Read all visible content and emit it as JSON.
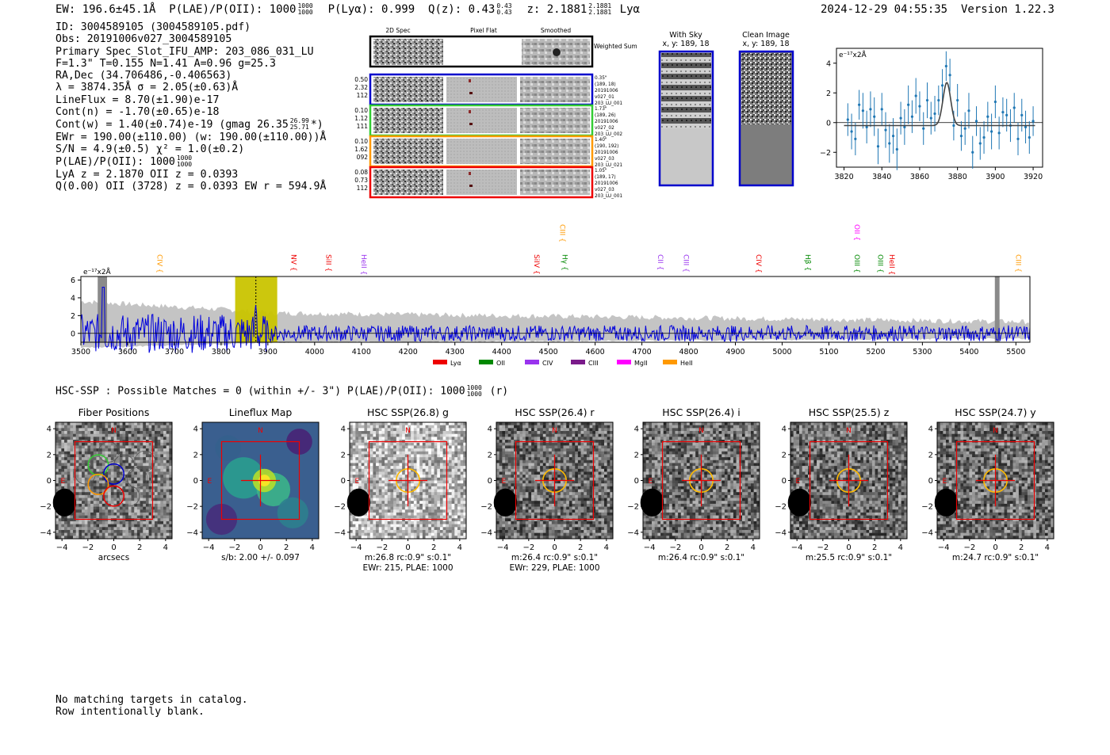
{
  "header": {
    "ew": "EW: 196.6±45.1Å",
    "plae_label": "P(LAE)/P(OII): 1000",
    "plae_hi": "1000",
    "plae_lo": "1000",
    "plya": "P(Lyα): 0.999",
    "qz_label": "Q(z): 0.43",
    "qz_hi": "0.43",
    "qz_lo": "0.43",
    "z_label": "z: 2.1881",
    "z_hi": "2.1881",
    "z_lo": "2.1881",
    "z_line": "Lyα",
    "datetime": "2024-12-29 04:55:35",
    "version": "Version 1.22.3"
  },
  "info": {
    "id": "ID: 3004589105 (3004589105.pdf)",
    "obs": "Obs: 20191006v027_3004589105",
    "primary": "Primary Spec_Slot_IFU_AMP: 203_086_031_LU",
    "fit": "F=1.3\"  T=0.155  N=1.41  A=0.96  g=25.3",
    "radec": "RA,Dec (34.706486,-0.406563)",
    "lambda": "λ = 3874.35Å  σ = 2.05(±0.63)Å",
    "lineflux": "LineFlux = 8.70(±1.90)e-17",
    "contn": "Cont(n) = -1.70(±0.65)e-18",
    "contw": "Cont(w) = 1.40(±0.74)e-19 (gmag 26.35",
    "gmag_hi": "26.99",
    "gmag_lo": "25.71",
    "contw_end": "*)",
    "ewr": "EWr = 190.00(±110.00) (w: 190.00(±110.00))Å",
    "sn": "S/N = 4.9(±0.5)  χ² = 1.0(±0.2)",
    "plae": "P(LAE)/P(OII): 1000",
    "plae_hi": "1000",
    "plae_lo": "1000",
    "lya": "LyA z = 2.1870  OII z = 0.0393",
    "q": "Q(0.00) OII (3728) z = 0.0393  EW r = 594.9Å"
  },
  "cutouts": {
    "col_2d": "2D Spec",
    "col_flat": "Pixel Flat",
    "col_smooth": "Smoothed",
    "weighted": "Weighted Sum",
    "rows": [
      {
        "left": [
          "0.50",
          "2.32",
          "112"
        ],
        "right": [
          "0.35\"",
          "(189, 18)",
          "20191006",
          "v027_01",
          "203_LU_001"
        ],
        "color": "#0000cc"
      },
      {
        "left": [
          "0.10",
          "1.12",
          "111"
        ],
        "right": [
          "1.73\"",
          "(189, 26)",
          "20191006",
          "v027_02",
          "203_LU_002"
        ],
        "color": "#33cc33"
      },
      {
        "left": [
          "0.10",
          "1.62",
          "092"
        ],
        "right": [
          "1.40\"",
          "(190, 192)",
          "20191006",
          "v027_03",
          "203_LU_021"
        ],
        "color": "#ff9900"
      },
      {
        "left": [
          "0.08",
          "0.73",
          "112"
        ],
        "right": [
          "1.05\"",
          "(189, 17)",
          "20191006",
          "v027_03",
          "203_LU_001"
        ],
        "color": "#ee0000"
      }
    ],
    "with_sky": "With Sky",
    "with_sky_xy": "x, y: 189, 18",
    "clean": "Clean Image",
    "clean_xy": "x, y: 189, 18"
  },
  "chart_data": [
    {
      "type": "scatter",
      "title": "",
      "ylabel_inset": "e⁻¹⁷x2Å",
      "xlim": [
        3816,
        3925
      ],
      "ylim": [
        -3,
        5
      ],
      "xticks": [
        3820,
        3840,
        3860,
        3880,
        3900,
        3920
      ],
      "yticks": [
        -2,
        0,
        2,
        4
      ],
      "x": [
        3822,
        3824,
        3826,
        3828,
        3830,
        3832,
        3834,
        3836,
        3838,
        3840,
        3842,
        3844,
        3846,
        3848,
        3850,
        3852,
        3854,
        3856,
        3858,
        3860,
        3862,
        3864,
        3866,
        3868,
        3870,
        3872,
        3874,
        3876,
        3878,
        3880,
        3882,
        3884,
        3886,
        3888,
        3890,
        3892,
        3894,
        3896,
        3898,
        3900,
        3902,
        3904,
        3906,
        3908,
        3910,
        3912,
        3914,
        3916,
        3918,
        3920
      ],
      "y": [
        0.2,
        -0.6,
        -1.1,
        1.2,
        0.8,
        -0.3,
        0.9,
        0.4,
        -1.6,
        0.9,
        -0.5,
        -1.4,
        -0.9,
        -1.8,
        0.3,
        -0.3,
        1.2,
        0.4,
        1.8,
        1.1,
        -0.4,
        1.5,
        0.3,
        0.6,
        1.5,
        2.5,
        3.8,
        3.2,
        -0.2,
        1.5,
        -0.9,
        -0.4,
        0.8,
        -2.0,
        0.1,
        -1.4,
        -1.0,
        0.4,
        -0.6,
        1.4,
        -0.7,
        0.7,
        0.5,
        -0.2,
        1.0,
        -1.1,
        0.5,
        -0.3,
        -1.0,
        0.1
      ],
      "err": [
        1.1,
        1.2,
        1.1,
        1.0,
        1.2,
        1.1,
        1.2,
        1.3,
        1.2,
        1.1,
        1.2,
        1.3,
        1.2,
        1.4,
        1.1,
        1.2,
        1.3,
        1.1,
        1.2,
        1.0,
        1.1,
        1.2,
        1.1,
        1.2,
        1.0,
        1.1,
        1.0,
        1.1,
        1.0,
        1.1,
        1.0,
        1.1,
        1.2,
        1.1,
        1.0,
        1.1,
        1.1,
        1.0,
        1.2,
        1.1,
        1.1,
        1.0,
        1.1,
        1.1,
        1.0,
        1.1,
        1.1,
        1.1,
        1.1,
        1.0
      ],
      "fit": {
        "amplitude": 2.9,
        "center": 3874.35,
        "sigma": 2.05,
        "continuum": -0.2
      }
    },
    {
      "type": "line",
      "ylabel_inset": "e⁻¹⁷x2Å",
      "xlim": [
        3500,
        5530
      ],
      "ylim": [
        -1,
        6.4
      ],
      "xticks": [
        3500,
        3600,
        3700,
        3800,
        3900,
        4000,
        4100,
        4200,
        4300,
        4400,
        4500,
        4600,
        4700,
        4800,
        4900,
        5000,
        5100,
        5200,
        5300,
        5400,
        5500
      ],
      "yticks": [
        0,
        2,
        4,
        6
      ],
      "highlight": [
        3830,
        3920
      ],
      "line_marker": 3874.35,
      "lines": [
        {
          "name": "CIV",
          "x": 3664,
          "color": "#ff9900",
          "row": 1
        },
        {
          "name": "NV",
          "x": 3950,
          "color": "#ee0000",
          "row": 1
        },
        {
          "name": "SiII",
          "x": 4025,
          "color": "#ee0000",
          "row": 1
        },
        {
          "name": "HeII",
          "x": 4100,
          "color": "#9933ee",
          "row": 1
        },
        {
          "name": "SiIV",
          "x": 4470,
          "color": "#ee0000",
          "row": 1
        },
        {
          "name": "CIII",
          "x": 4525,
          "color": "#ff9900",
          "row": 0
        },
        {
          "name": "Hγ",
          "x": 4530,
          "color": "#008800",
          "row": 1
        },
        {
          "name": "CII",
          "x": 4735,
          "color": "#9933ee",
          "row": 1
        },
        {
          "name": "CIII",
          "x": 4790,
          "color": "#9933ee",
          "row": 1
        },
        {
          "name": "CIV",
          "x": 4945,
          "color": "#ee0000",
          "row": 1
        },
        {
          "name": "Hβ",
          "x": 5050,
          "color": "#008800",
          "row": 1
        },
        {
          "name": "OII",
          "x": 5155,
          "color": "#ff00ff",
          "row": 0
        },
        {
          "name": "OIII",
          "x": 5155,
          "color": "#008800",
          "row": 1
        },
        {
          "name": "OIII",
          "x": 5205,
          "color": "#008800",
          "row": 1
        },
        {
          "name": "HeII",
          "x": 5230,
          "color": "#ee0000",
          "row": 1
        },
        {
          "name": "CIII",
          "x": 5500,
          "color": "#ff9900",
          "row": 1
        }
      ],
      "legend": [
        {
          "name": "Lyα",
          "color": "#ee0000"
        },
        {
          "name": "OII",
          "color": "#008800"
        },
        {
          "name": "CIV",
          "color": "#9933ee"
        },
        {
          "name": "CIII",
          "color": "#7a1a8a"
        },
        {
          "name": "MgII",
          "color": "#ff00ff"
        },
        {
          "name": "HeII",
          "color": "#ff9900"
        }
      ]
    }
  ],
  "hsc": {
    "header": "HSC-SSP : Possible Matches = 0 (within +/- 3\")  P(LAE)/P(OII): 1000",
    "plae_hi": "1000",
    "plae_lo": "1000",
    "band_suffix": "(r)",
    "axis_ticks": [
      "−4",
      "−2",
      "0",
      "2",
      "4"
    ],
    "north": "N",
    "east": "E",
    "panels": [
      {
        "title": "Fiber Positions",
        "caption1": "arcsecs",
        "caption2": ""
      },
      {
        "title": "Lineflux Map",
        "caption1": "s/b: 2.00 +/- 0.097",
        "caption2": ""
      },
      {
        "title": "HSC SSP(26.8) g",
        "caption1": "m:26.8 rc:0.9\"  s:0.1\"",
        "caption2": "EWr: 215, PLAE: 1000"
      },
      {
        "title": "HSC SSP(26.4) r",
        "caption1": "m:26.4 rc:0.9\"  s:0.1\"",
        "caption2": "EWr: 229, PLAE: 1000"
      },
      {
        "title": "HSC SSP(26.4) i",
        "caption1": "m:26.4 rc:0.9\"  s:0.1\"",
        "caption2": ""
      },
      {
        "title": "HSC SSP(25.5) z",
        "caption1": "m:25.5 rc:0.9\"  s:0.1\"",
        "caption2": ""
      },
      {
        "title": "HSC SSP(24.7) y",
        "caption1": "m:24.7 rc:0.9\"  s:0.1\"",
        "caption2": ""
      }
    ]
  },
  "footer": {
    "line1": "No matching targets in catalog.",
    "line2": "Row intentionally blank."
  }
}
